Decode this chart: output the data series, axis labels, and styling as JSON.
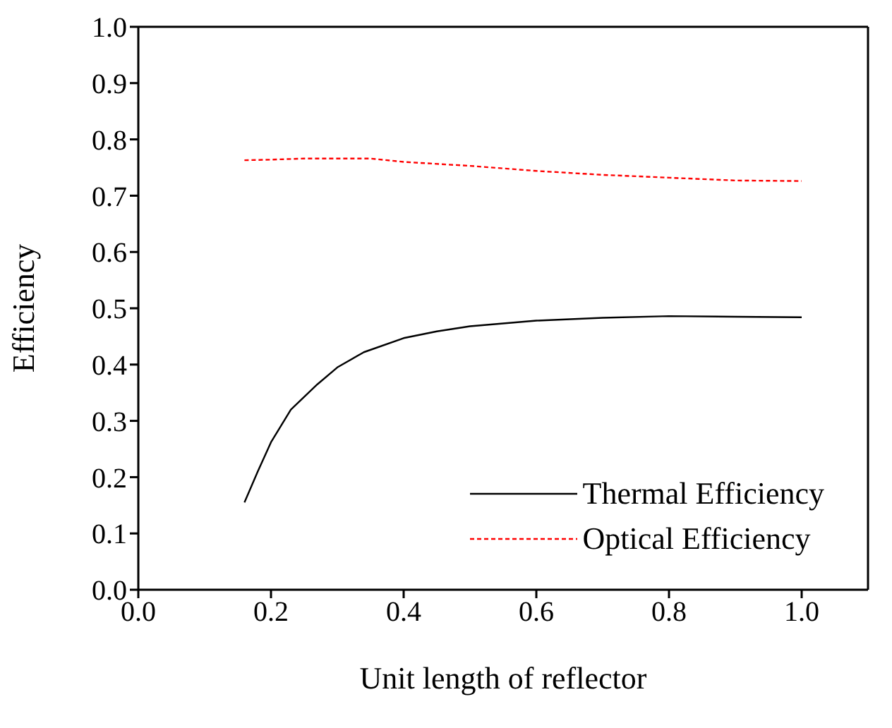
{
  "chart_data": {
    "type": "line",
    "xlabel": "Unit length of reflector",
    "ylabel": "Efficiency",
    "xlim": [
      0,
      1.1
    ],
    "xticks": [
      {
        "value": 0,
        "label": "0.0"
      },
      0.2,
      0.4,
      0.6,
      0.8,
      {
        "value": 1,
        "label": "1.0"
      }
    ],
    "ylim": [
      0,
      1
    ],
    "yticks": [
      {
        "value": 0,
        "label": "0.0"
      },
      0.1,
      0.2,
      0.3,
      0.4,
      0.5,
      0.6,
      0.7,
      0.8,
      0.9,
      {
        "value": 1,
        "label": "1.0"
      }
    ],
    "grid": false,
    "legend": "bottom right",
    "marker": "none",
    "series": [
      {
        "name": "Thermal Efficiency",
        "color": "#000000",
        "line_style": "solid",
        "x": [
          0.16,
          0.18,
          0.2,
          0.23,
          0.27,
          0.3,
          0.34,
          0.4,
          0.45,
          0.5,
          0.6,
          0.7,
          0.8,
          0.9,
          1.0
        ],
        "values": [
          0.155,
          0.21,
          0.262,
          0.32,
          0.365,
          0.395,
          0.422,
          0.447,
          0.459,
          0.468,
          0.478,
          0.483,
          0.486,
          0.485,
          0.484
        ]
      },
      {
        "name": "Optical Efficiency",
        "color": "#ff0000",
        "line_style": "dashed",
        "x": [
          0.16,
          0.2,
          0.25,
          0.3,
          0.35,
          0.4,
          0.5,
          0.6,
          0.7,
          0.8,
          0.9,
          1.0
        ],
        "values": [
          0.763,
          0.764,
          0.766,
          0.766,
          0.766,
          0.76,
          0.753,
          0.744,
          0.737,
          0.732,
          0.727,
          0.726
        ]
      }
    ]
  }
}
